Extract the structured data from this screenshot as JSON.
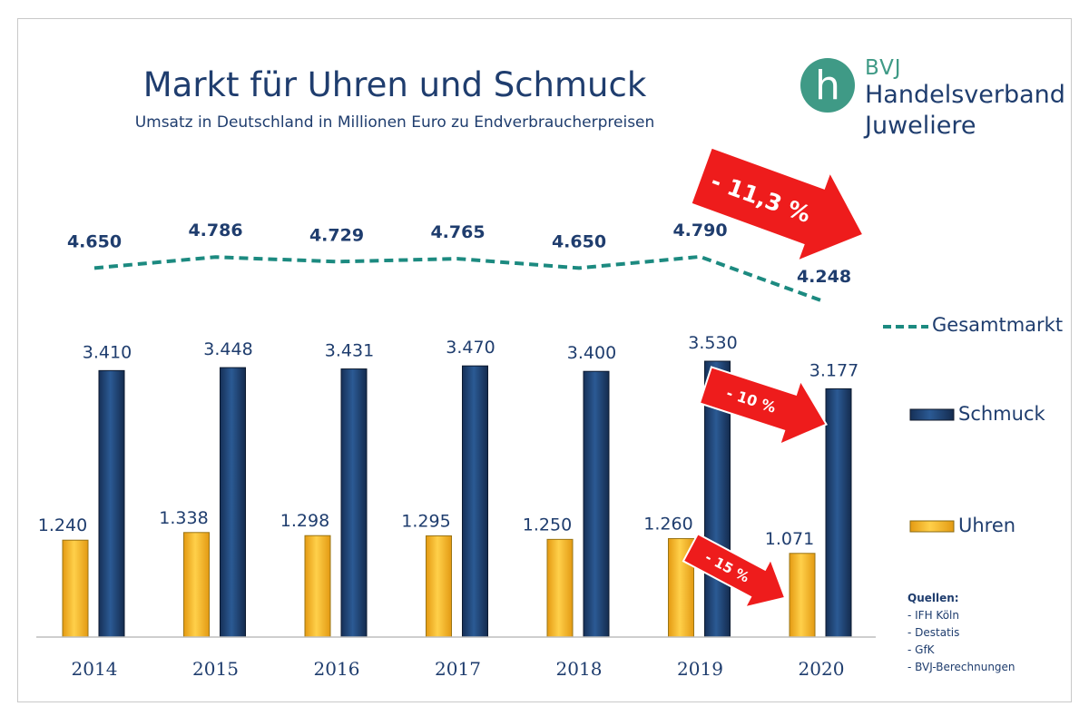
{
  "title": "Markt für Uhren und Schmuck",
  "subtitle": "Umsatz in Deutschland in Millionen Euro zu Endverbraucherpreisen",
  "logo": {
    "abbr": "BVJ",
    "line2": "Handelsverband",
    "line3": "Juweliere",
    "mark": "h",
    "color": "#3f9a86"
  },
  "legend": {
    "gesamt": "Gesamtmarkt",
    "schmuck": "Schmuck",
    "uhren": "Uhren"
  },
  "sources": {
    "heading": "Quellen:",
    "items": [
      "- IFH Köln",
      "- Destatis",
      "- GfK",
      "- BVJ-Berechnungen"
    ]
  },
  "callouts": {
    "gesamt": "- 11,3 %",
    "schmuck": "- 10 %",
    "uhren": "- 15 %",
    "color": "#ee1c1c"
  },
  "colors": {
    "schmuck": "#1f3d6e",
    "uhren": "#f5b82a",
    "gesamt": "#1c8a80",
    "text": "#1f3d6e"
  },
  "chart_data": {
    "type": "bar",
    "categories": [
      "2014",
      "2015",
      "2016",
      "2017",
      "2018",
      "2019",
      "2020"
    ],
    "series": [
      {
        "name": "Uhren",
        "type": "bar",
        "values": [
          1240,
          1338,
          1298,
          1295,
          1250,
          1260,
          1071
        ],
        "labels": [
          "1.240",
          "1.338",
          "1.298",
          "1.295",
          "1.250",
          "1.260",
          "1.071"
        ]
      },
      {
        "name": "Schmuck",
        "type": "bar",
        "values": [
          3410,
          3448,
          3431,
          3470,
          3400,
          3530,
          3177
        ],
        "labels": [
          "3.410",
          "3.448",
          "3.431",
          "3.470",
          "3.400",
          "3.530",
          "3.177"
        ]
      },
      {
        "name": "Gesamtmarkt",
        "type": "line",
        "style": "dashed",
        "values": [
          4650,
          4786,
          4729,
          4765,
          4650,
          4790,
          4248
        ],
        "labels": [
          "4.650",
          "4.786",
          "4.729",
          "4.765",
          "4.650",
          "4.790",
          "4.248"
        ]
      }
    ],
    "bar_ylim": [
      0,
      3600
    ],
    "line_ylim": [
      4000,
      5200
    ],
    "grid": false,
    "legend_placement": "right"
  }
}
